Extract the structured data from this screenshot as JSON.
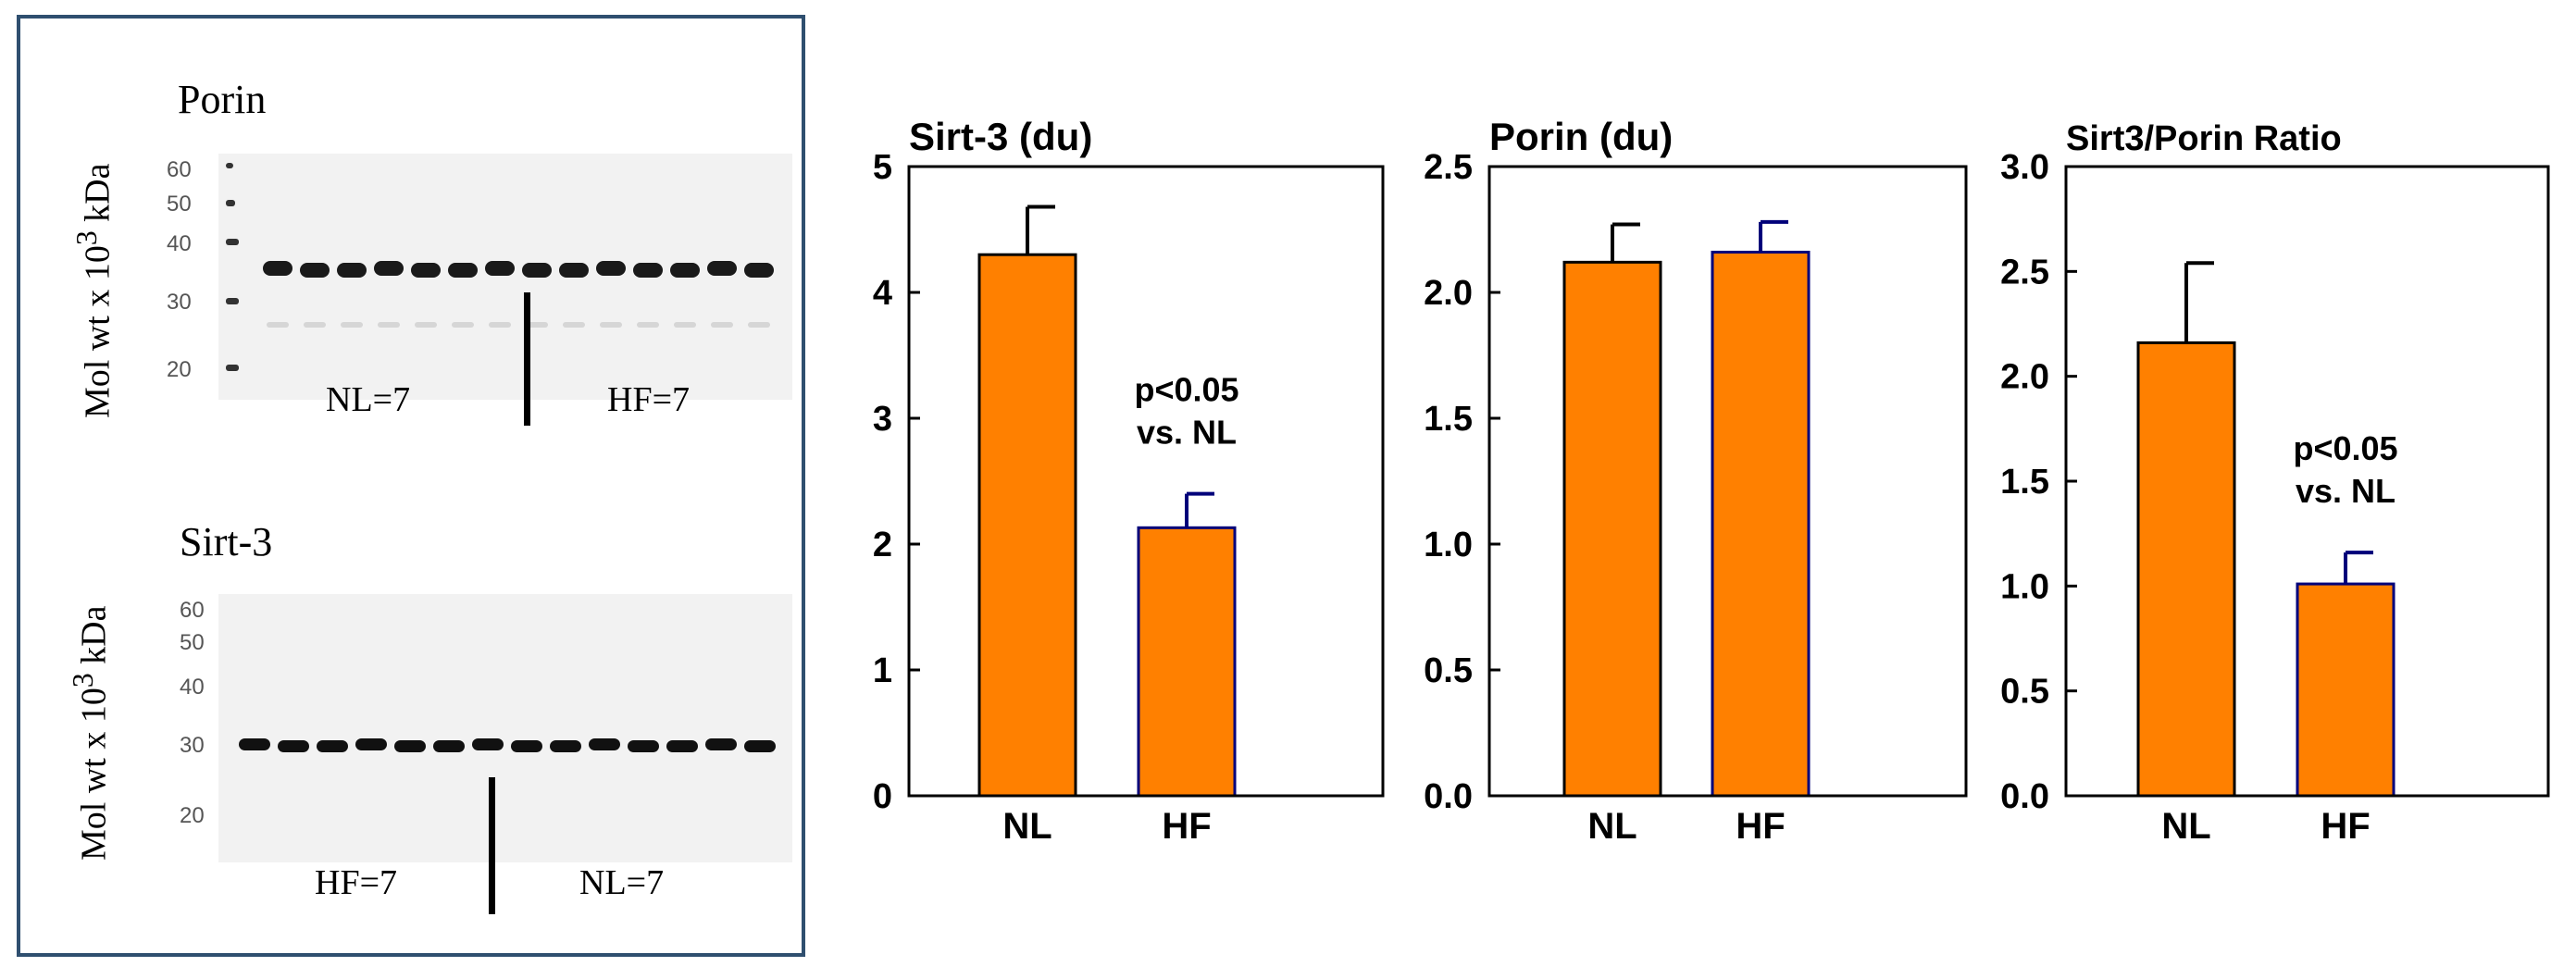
{
  "blots": [
    {
      "title": "Porin",
      "axis_label": "Mol wt x 10",
      "axis_exp": "3",
      "axis_unit": " kDa",
      "markers": [
        "60",
        "50",
        "40",
        "30",
        "20"
      ],
      "group_left": "NL=7",
      "group_right": "HF=7"
    },
    {
      "title": "Sirt-3",
      "axis_label": "Mol wt x 10",
      "axis_exp": "3",
      "axis_unit": " kDa",
      "markers": [
        "60",
        "50",
        "40",
        "30",
        "20"
      ],
      "group_left": "HF=7",
      "group_right": "NL=7"
    }
  ],
  "colors": {
    "bar": "#ff8000",
    "nl_edge": "#000000",
    "hf_edge": "#00007a",
    "panel_border": "#2f4f6f"
  },
  "chart_data": [
    {
      "type": "bar",
      "title": "Sirt-3 (du)",
      "categories": [
        "NL",
        "HF"
      ],
      "values": [
        4.3,
        2.13
      ],
      "errors": [
        0.38,
        0.27
      ],
      "ylim": [
        0,
        5
      ],
      "yticks": [
        "0",
        "1",
        "2",
        "3",
        "4",
        "5"
      ],
      "annotation": [
        "p<0.05",
        "vs. NL"
      ]
    },
    {
      "type": "bar",
      "title": "Porin (du)",
      "categories": [
        "NL",
        "HF"
      ],
      "values": [
        2.12,
        2.16
      ],
      "errors": [
        0.15,
        0.12
      ],
      "ylim": [
        0,
        2.5
      ],
      "yticks": [
        "0.0",
        "0.5",
        "1.0",
        "1.5",
        "2.0",
        "2.5"
      ]
    },
    {
      "type": "bar",
      "title": "Sirt3/Porin Ratio",
      "categories": [
        "NL",
        "HF"
      ],
      "values": [
        2.16,
        1.01
      ],
      "errors": [
        0.38,
        0.15
      ],
      "ylim": [
        0,
        3
      ],
      "yticks": [
        "0.0",
        "0.5",
        "1.0",
        "1.5",
        "2.0",
        "2.5",
        "3.0"
      ],
      "annotation": [
        "p<0.05",
        "vs. NL"
      ]
    }
  ]
}
